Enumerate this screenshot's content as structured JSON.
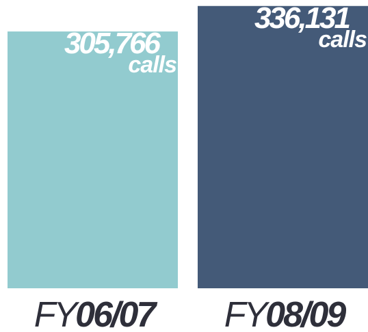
{
  "chart_data": {
    "type": "bar",
    "categories": [
      "FY06/07",
      "FY08/09"
    ],
    "values": [
      305766,
      336131
    ],
    "value_labels": [
      "305,766",
      "336,131"
    ],
    "unit": "calls",
    "colors": [
      "#92cbcf",
      "#445a78"
    ],
    "ylim": [
      0,
      340000
    ]
  }
}
